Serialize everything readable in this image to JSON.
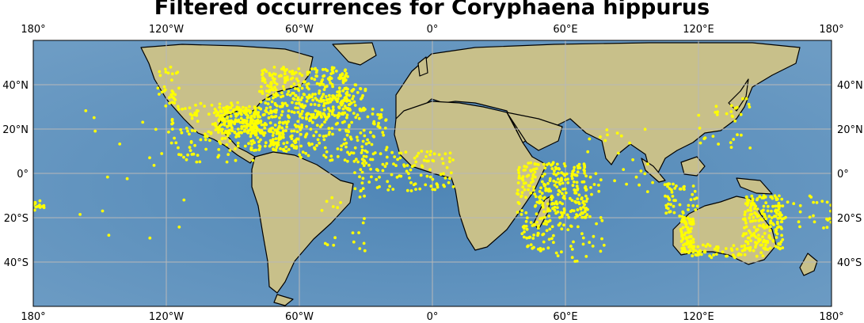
{
  "title": "Filtered occurrences for Coryphaena hippurus",
  "map": {
    "projection": "PlateCarree",
    "lon_range": [
      -180,
      180
    ],
    "lat_range": [
      -60,
      60
    ],
    "ocean_color": "#5d8fb8",
    "land_color": "#c9c28e",
    "coastline_color": "#000000",
    "gridlines": true,
    "gridline_color": "#b8b8b8",
    "lon_ticks": [
      {
        "value": -180,
        "label": "180°"
      },
      {
        "value": -120,
        "label": "120°W"
      },
      {
        "value": -60,
        "label": "60°W"
      },
      {
        "value": 0,
        "label": "0°"
      },
      {
        "value": 60,
        "label": "60°E"
      },
      {
        "value": 120,
        "label": "120°E"
      },
      {
        "value": 180,
        "label": "180°"
      }
    ],
    "lat_ticks": [
      {
        "value": 40,
        "label": "40°N"
      },
      {
        "value": 20,
        "label": "20°N"
      },
      {
        "value": 0,
        "label": "0°"
      },
      {
        "value": -20,
        "label": "20°S"
      },
      {
        "value": -40,
        "label": "40°S"
      }
    ]
  },
  "chart_data": {
    "type": "scatter",
    "marker_color": "#ffff00",
    "occurrence_regions": [
      {
        "lon": [
          -125,
          -114
        ],
        "lat": [
          30,
          48
        ],
        "n": 30
      },
      {
        "lon": [
          -118,
          -80
        ],
        "lat": [
          5,
          32
        ],
        "n": 120
      },
      {
        "lon": [
          -98,
          -78
        ],
        "lat": [
          18,
          30
        ],
        "n": 200
      },
      {
        "lon": [
          -82,
          -60
        ],
        "lat": [
          10,
          24
        ],
        "n": 150
      },
      {
        "lon": [
          -78,
          -38
        ],
        "lat": [
          25,
          48
        ],
        "n": 350
      },
      {
        "lon": [
          -60,
          -20
        ],
        "lat": [
          5,
          30
        ],
        "n": 150
      },
      {
        "lon": [
          -40,
          -30
        ],
        "lat": [
          28,
          40
        ],
        "n": 40
      },
      {
        "lon": [
          -35,
          10
        ],
        "lat": [
          -8,
          10
        ],
        "n": 120
      },
      {
        "lon": [
          -50,
          -30
        ],
        "lat": [
          -35,
          -10
        ],
        "n": 20
      },
      {
        "lon": [
          38,
          70
        ],
        "lat": [
          -20,
          5
        ],
        "n": 250
      },
      {
        "lon": [
          40,
          55
        ],
        "lat": [
          -35,
          -20
        ],
        "n": 50
      },
      {
        "lon": [
          50,
          78
        ],
        "lat": [
          -40,
          -18
        ],
        "n": 40
      },
      {
        "lon": [
          70,
          100
        ],
        "lat": [
          -10,
          20
        ],
        "n": 30
      },
      {
        "lon": [
          104,
          120
        ],
        "lat": [
          -20,
          -4
        ],
        "n": 50
      },
      {
        "lon": [
          112,
          118
        ],
        "lat": [
          -36,
          -20
        ],
        "n": 80
      },
      {
        "lon": [
          140,
          158
        ],
        "lat": [
          -35,
          -10
        ],
        "n": 200
      },
      {
        "lon": [
          115,
          150
        ],
        "lat": [
          -38,
          -32
        ],
        "n": 60
      },
      {
        "lon": [
          155,
          180
        ],
        "lat": [
          -25,
          -10
        ],
        "n": 30
      },
      {
        "lon": [
          120,
          145
        ],
        "lat": [
          10,
          35
        ],
        "n": 30
      },
      {
        "lon": [
          -180,
          -175
        ],
        "lat": [
          -17,
          -12
        ],
        "n": 15
      },
      {
        "lon": [
          -160,
          -110
        ],
        "lat": [
          -30,
          30
        ],
        "n": 20
      }
    ]
  }
}
